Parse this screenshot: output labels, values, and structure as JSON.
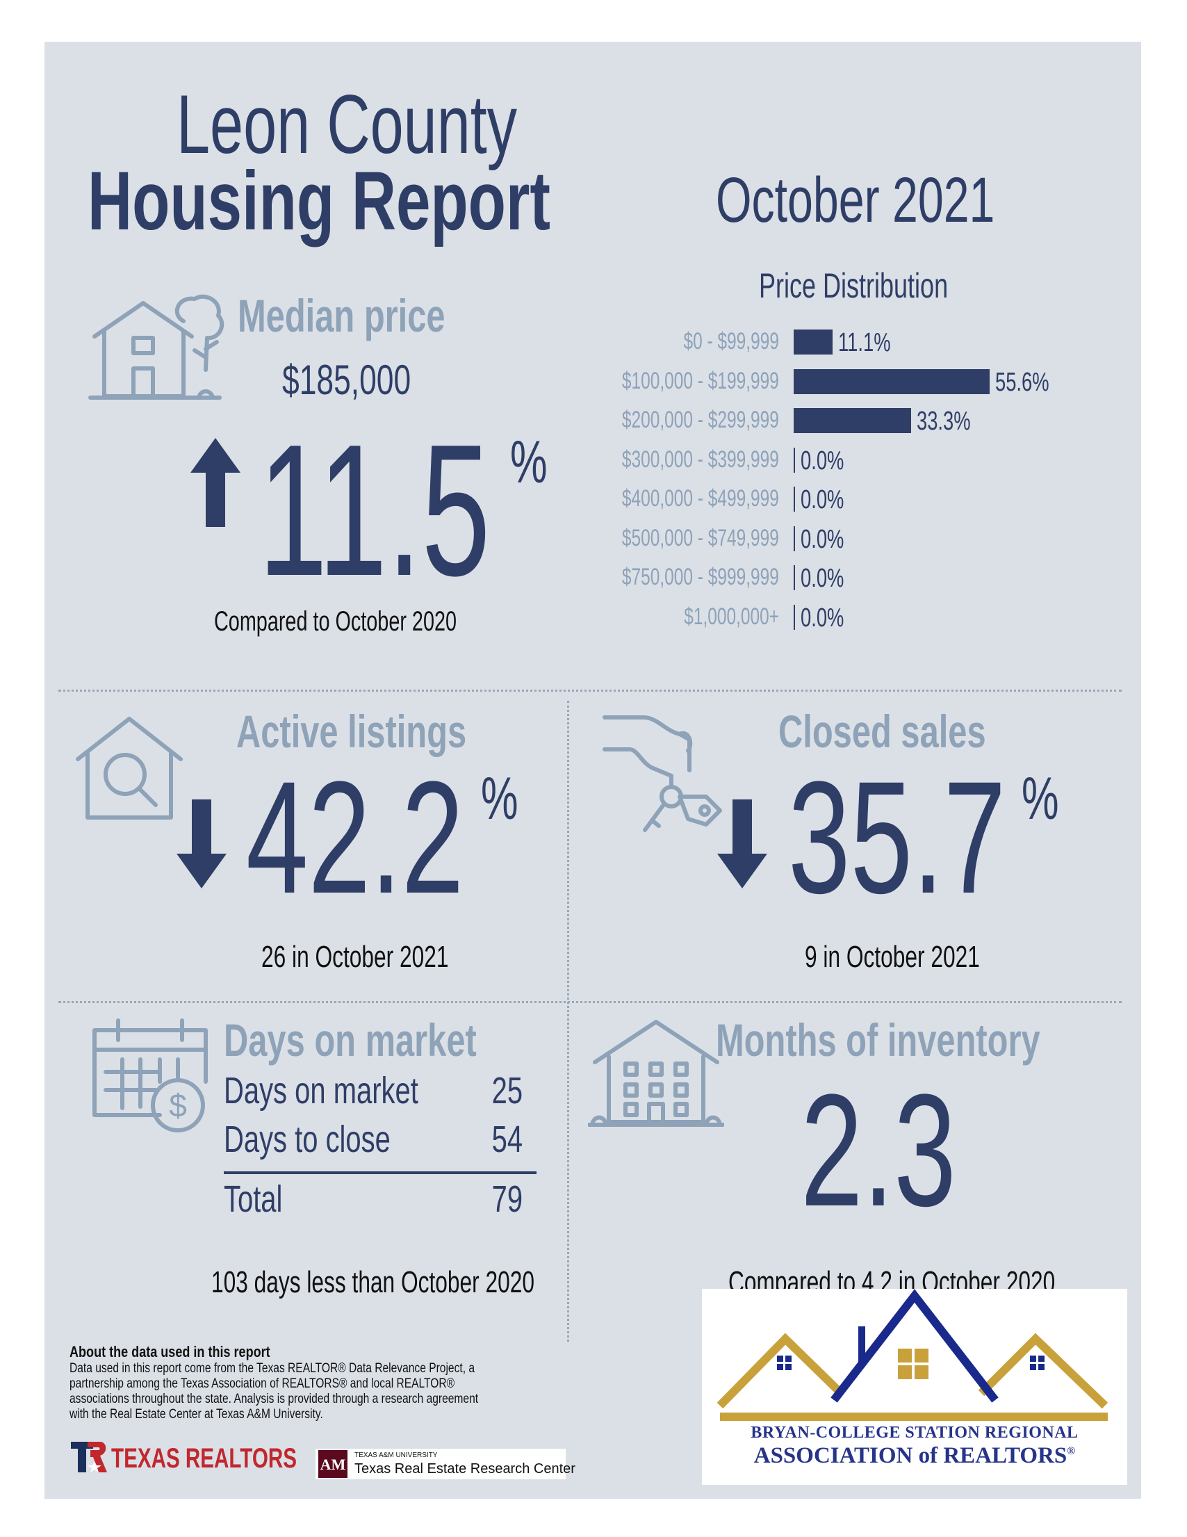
{
  "header": {
    "title_line1": "Leon County",
    "title_line2": "Housing Report",
    "month": "October 2021"
  },
  "median_price": {
    "title": "Median price",
    "value": "$185,000",
    "change_value": "11.5",
    "change_unit": "%",
    "direction": "up",
    "compare_text": "Compared to October 2020"
  },
  "price_distribution": {
    "title": "Price Distribution",
    "rows": [
      {
        "label": "$0 - $99,999",
        "value": "11.1%",
        "pct": 11.1
      },
      {
        "label": "$100,000 - $199,999",
        "value": "55.6%",
        "pct": 55.6
      },
      {
        "label": "$200,000 - $299,999",
        "value": "33.3%",
        "pct": 33.3
      },
      {
        "label": "$300,000 - $399,999",
        "value": "0.0%",
        "pct": 0
      },
      {
        "label": "$400,000 - $499,999",
        "value": "0.0%",
        "pct": 0
      },
      {
        "label": "$500,000 - $749,999",
        "value": "0.0%",
        "pct": 0
      },
      {
        "label": "$750,000 - $999,999",
        "value": "0.0%",
        "pct": 0
      },
      {
        "label": "$1,000,000+",
        "value": "0.0%",
        "pct": 0
      }
    ]
  },
  "chart_data": {
    "type": "bar",
    "title": "Price Distribution",
    "categories": [
      "$0 - $99,999",
      "$100,000 - $199,999",
      "$200,000 - $299,999",
      "$300,000 - $399,999",
      "$400,000 - $499,999",
      "$500,000 - $749,999",
      "$750,000 - $999,999",
      "$1,000,000+"
    ],
    "values": [
      11.1,
      55.6,
      33.3,
      0.0,
      0.0,
      0.0,
      0.0,
      0.0
    ],
    "orientation": "horizontal",
    "xlim": [
      0,
      55.6
    ],
    "grid": false
  },
  "active_listings": {
    "title": "Active listings",
    "change_value": "42.2",
    "change_unit": "%",
    "direction": "down",
    "subtext": "26 in October 2021"
  },
  "closed_sales": {
    "title": "Closed sales",
    "change_value": "35.7",
    "change_unit": "%",
    "direction": "down",
    "subtext": "9 in October 2021"
  },
  "days_on_market": {
    "title": "Days on market",
    "rows": [
      {
        "label": "Days on market",
        "value": "25"
      },
      {
        "label": "Days to close",
        "value": "54"
      }
    ],
    "total_label": "Total",
    "total_value": "79",
    "compare_text": "103 days less than October 2020"
  },
  "months_inventory": {
    "title": "Months of inventory",
    "value": "2.3",
    "compare_text": "Compared to 4.2 in October 2020"
  },
  "about": {
    "heading": "About the data used in this report",
    "lines": [
      "Data used in this report come from the Texas REALTOR® Data Relevance Project, a",
      "partnership among the Texas Association of REALTORS® and local REALTOR®",
      "associations throughout the state. Analysis is provided through a research agreement",
      "with the Real Estate Center at Texas A&M University."
    ]
  },
  "logos": {
    "texas_realtors": "TEXAS REALTORS",
    "tamu_small": "TEXAS A&M UNIVERSITY",
    "tamu_big": "Texas Real Estate Research Center",
    "bcs_line1": "BRYAN-COLLEGE STATION REGIONAL",
    "bcs_line2": "ASSOCIATION of REALTORS",
    "bcs_mark": "®"
  },
  "colors": {
    "navy": "#2f3e66",
    "light_blue": "#8ea2b8",
    "panel": "#dbe0e7",
    "gold": "#c9a13b",
    "bcs_blue": "#1a2a8c",
    "texas_red": "#c1272d"
  }
}
